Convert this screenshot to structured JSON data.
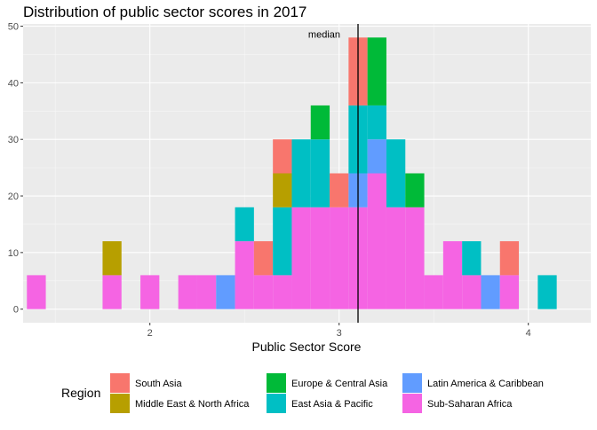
{
  "chart_data": {
    "type": "bar",
    "stacked": true,
    "title": "Distribution of public sector scores in 2017",
    "xlabel": "Public Sector Score",
    "ylabel": "",
    "xlim": [
      1.33,
      4.33
    ],
    "ylim": [
      -2.4,
      50.4
    ],
    "bin_width": 0.1,
    "x_ticks": [
      2,
      3,
      4
    ],
    "y_ticks": [
      0,
      10,
      20,
      30,
      40,
      50
    ],
    "grid": true,
    "legend_title": "Region",
    "legend_position": "bottom",
    "median": 3.1,
    "median_label": "median",
    "series": [
      {
        "name": "South Asia",
        "color": "#F8766D"
      },
      {
        "name": "Middle East & North Africa",
        "color": "#B79F00"
      },
      {
        "name": "Europe & Central Asia",
        "color": "#00BA38"
      },
      {
        "name": "East Asia & Pacific",
        "color": "#00BFC4"
      },
      {
        "name": "Latin America & Caribbean",
        "color": "#619CFF"
      },
      {
        "name": "Sub-Saharan Africa",
        "color": "#F564E3"
      }
    ],
    "stack_order": [
      "Sub-Saharan Africa",
      "Latin America & Caribbean",
      "East Asia & Pacific",
      "Europe & Central Asia",
      "Middle East & North Africa",
      "South Asia"
    ],
    "bins": [
      {
        "x": 1.4,
        "counts": {
          "Sub-Saharan Africa": 6
        }
      },
      {
        "x": 1.8,
        "counts": {
          "Sub-Saharan Africa": 6,
          "Middle East & North Africa": 6
        }
      },
      {
        "x": 2.0,
        "counts": {
          "Sub-Saharan Africa": 6
        }
      },
      {
        "x": 2.2,
        "counts": {
          "Sub-Saharan Africa": 6
        }
      },
      {
        "x": 2.3,
        "counts": {
          "Sub-Saharan Africa": 6
        }
      },
      {
        "x": 2.4,
        "counts": {
          "Latin America & Caribbean": 6
        }
      },
      {
        "x": 2.5,
        "counts": {
          "Sub-Saharan Africa": 12,
          "East Asia & Pacific": 6
        }
      },
      {
        "x": 2.6,
        "counts": {
          "Sub-Saharan Africa": 6,
          "South Asia": 6
        }
      },
      {
        "x": 2.7,
        "counts": {
          "Sub-Saharan Africa": 6,
          "East Asia & Pacific": 12,
          "Middle East & North Africa": 6,
          "South Asia": 6
        }
      },
      {
        "x": 2.8,
        "counts": {
          "Sub-Saharan Africa": 18,
          "East Asia & Pacific": 12
        }
      },
      {
        "x": 2.9,
        "counts": {
          "Sub-Saharan Africa": 18,
          "East Asia & Pacific": 12,
          "Europe & Central Asia": 6
        }
      },
      {
        "x": 3.0,
        "counts": {
          "Sub-Saharan Africa": 18,
          "South Asia": 6
        }
      },
      {
        "x": 3.1,
        "counts": {
          "Sub-Saharan Africa": 18,
          "Latin America & Caribbean": 6,
          "East Asia & Pacific": 12,
          "South Asia": 12
        }
      },
      {
        "x": 3.2,
        "counts": {
          "Sub-Saharan Africa": 24,
          "Latin America & Caribbean": 6,
          "East Asia & Pacific": 6,
          "Europe & Central Asia": 12
        }
      },
      {
        "x": 3.3,
        "counts": {
          "Sub-Saharan Africa": 18,
          "East Asia & Pacific": 12
        }
      },
      {
        "x": 3.4,
        "counts": {
          "Sub-Saharan Africa": 18,
          "Europe & Central Asia": 6
        }
      },
      {
        "x": 3.5,
        "counts": {
          "Sub-Saharan Africa": 6
        }
      },
      {
        "x": 3.6,
        "counts": {
          "Sub-Saharan Africa": 12
        }
      },
      {
        "x": 3.7,
        "counts": {
          "Sub-Saharan Africa": 6,
          "East Asia & Pacific": 6
        }
      },
      {
        "x": 3.8,
        "counts": {
          "Latin America & Caribbean": 6
        }
      },
      {
        "x": 3.9,
        "counts": {
          "Sub-Saharan Africa": 6,
          "South Asia": 6
        }
      },
      {
        "x": 4.1,
        "counts": {
          "East Asia & Pacific": 6
        }
      }
    ]
  }
}
